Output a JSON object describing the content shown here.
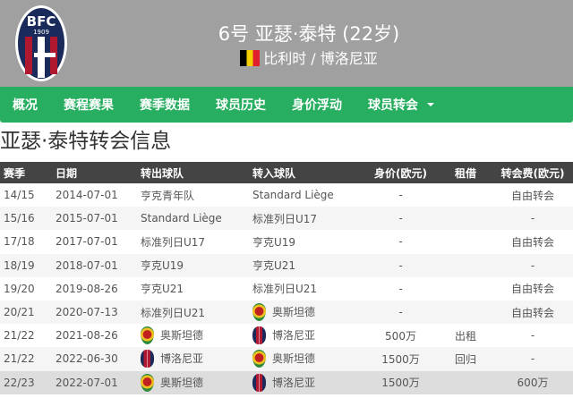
{
  "header": {
    "logo_text": "BFC 1909",
    "title": "6号 亚瑟·泰特 (22岁)",
    "subtitle": "比利时 / 博洛尼亚",
    "flag": "belgium-flag"
  },
  "nav": {
    "items": [
      "概况",
      "赛程赛果",
      "赛季数据",
      "球员历史",
      "身价浮动",
      "球员转会"
    ]
  },
  "page_title": "亚瑟·泰特转会信息",
  "table": {
    "headers": [
      "赛季",
      "日期",
      "转出球队",
      "转入球队",
      "身价(欧元)",
      "租借",
      "转会费(欧元)"
    ],
    "rows": [
      {
        "season": "14/15",
        "date": "2014-07-01",
        "from": "亨克青年队",
        "to": "Standard Liège",
        "value": "-",
        "loan": "",
        "fee": "自由转会"
      },
      {
        "season": "15/16",
        "date": "2015-07-01",
        "from": "Standard Liège",
        "to": "标准列日U17",
        "value": "-",
        "loan": "",
        "fee": "-"
      },
      {
        "season": "17/18",
        "date": "2017-07-01",
        "from": "标准列日U17",
        "to": "亨克U19",
        "value": "-",
        "loan": "",
        "fee": "自由转会"
      },
      {
        "season": "18/19",
        "date": "2018-07-01",
        "from": "亨克U19",
        "to": "亨克U21",
        "value": "-",
        "loan": "",
        "fee": "-"
      },
      {
        "season": "19/20",
        "date": "2019-08-26",
        "from": "亨克U21",
        "to": "标准列日U21",
        "value": "-",
        "loan": "",
        "fee": "自由转会"
      },
      {
        "season": "20/21",
        "date": "2020-07-13",
        "from": "标准列日U21",
        "to": "奥斯坦德",
        "to_badge": "ost",
        "value": "-",
        "loan": "",
        "fee": "自由转会"
      },
      {
        "season": "21/22",
        "date": "2021-08-26",
        "from": "奥斯坦德",
        "from_badge": "ost",
        "to": "博洛尼亚",
        "to_badge": "bol",
        "value": "500万",
        "loan": "出租",
        "fee": "-"
      },
      {
        "season": "21/22",
        "date": "2022-06-30",
        "from": "博洛尼亚",
        "from_badge": "bol",
        "to": "奥斯坦德",
        "to_badge": "ost",
        "value": "1500万",
        "loan": "回归",
        "fee": "-"
      },
      {
        "season": "22/23",
        "date": "2022-07-01",
        "from": "奥斯坦德",
        "from_badge": "ost",
        "to": "博洛尼亚",
        "to_badge": "bol",
        "value": "1500万",
        "loan": "",
        "fee": "600万"
      }
    ]
  },
  "colors": {
    "nav": "#27ae60",
    "header": "#a0a0a0",
    "table_header": "#444444"
  }
}
